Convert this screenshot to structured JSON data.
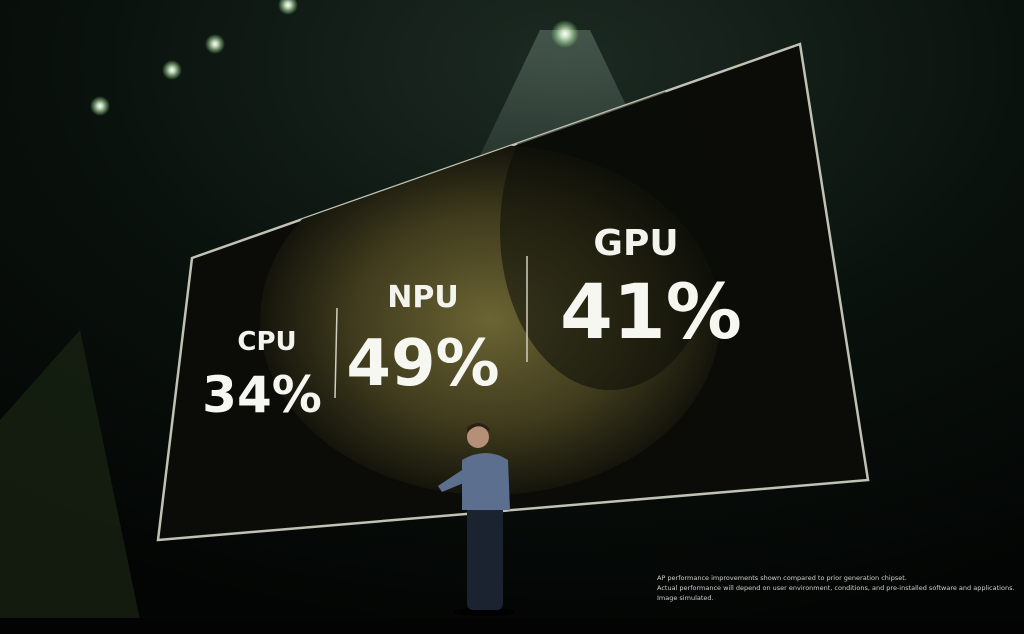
{
  "slide": {
    "stats": [
      {
        "label": "CPU",
        "value": "34%"
      },
      {
        "label": "NPU",
        "value": "49%"
      },
      {
        "label": "GPU",
        "value": "41%"
      }
    ],
    "footnote": [
      "AP performance improvements shown compared to prior generation chipset.",
      "Actual performance will depend on user environment, conditions, and pre-installed software and applications.",
      "Image simulated."
    ]
  }
}
